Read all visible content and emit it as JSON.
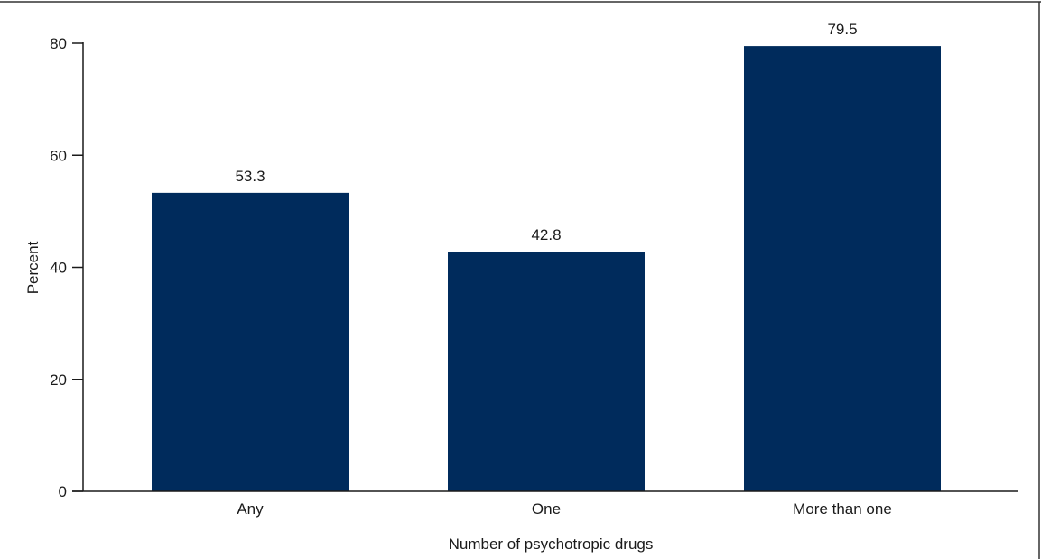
{
  "chart_data": {
    "type": "bar",
    "title": "",
    "xlabel": "Number of psychotropic drugs",
    "ylabel": "Percent",
    "categories": [
      "Any",
      "One",
      "More than one"
    ],
    "values": [
      53.3,
      42.8,
      79.5
    ],
    "value_labels": [
      "53.3",
      "42.8",
      "79.5"
    ],
    "ylim": [
      0,
      80
    ],
    "yticks": [
      0,
      20,
      40,
      60,
      80
    ],
    "ytick_labels": [
      "0",
      "20",
      "40",
      "60",
      "80"
    ],
    "grid": false,
    "legend": "none",
    "bar_color": "#002b5c"
  }
}
